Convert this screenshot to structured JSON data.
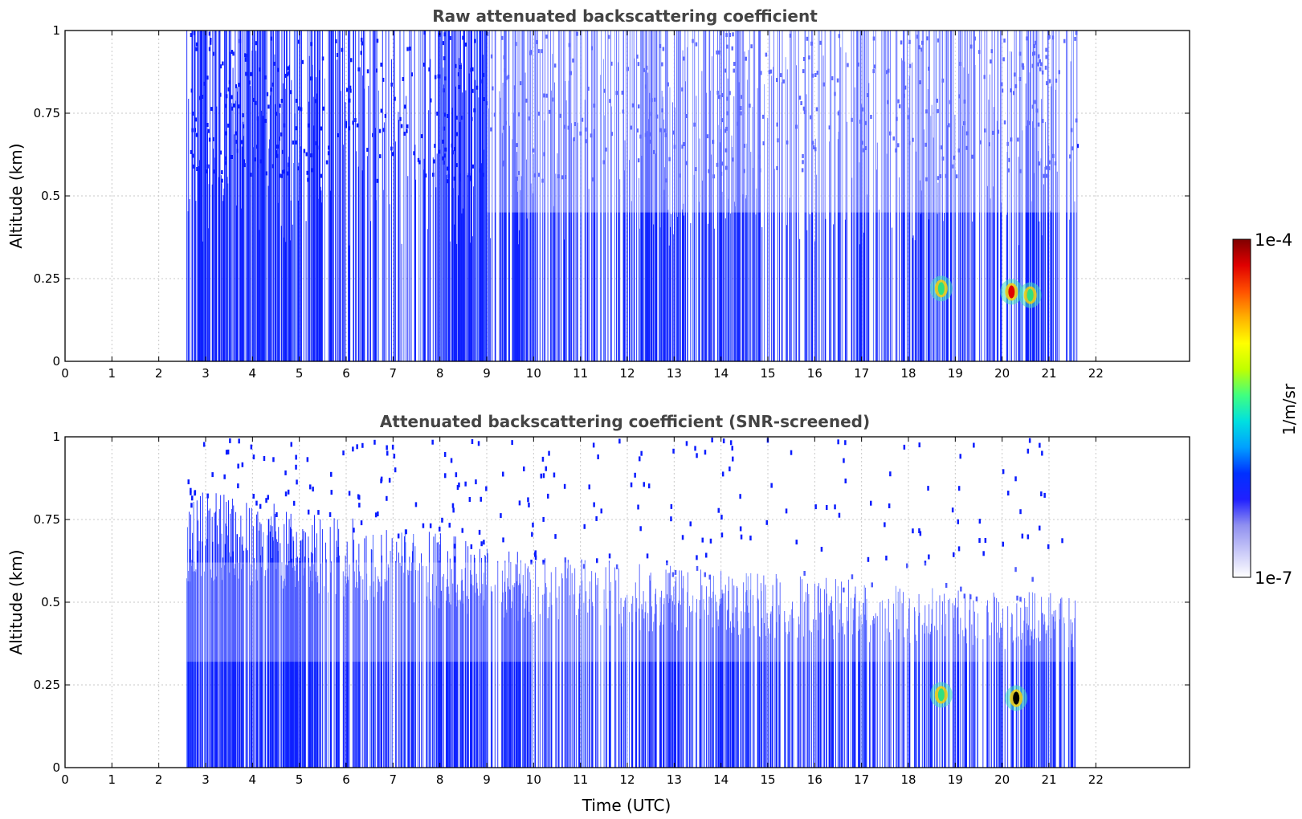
{
  "chart_data": [
    {
      "type": "heatmap",
      "title": "Raw attenuated backscattering coefficient",
      "xlabel": "",
      "ylabel": "Altitude (km)",
      "xlim": [
        0,
        24
      ],
      "ylim": [
        0,
        1
      ],
      "x_ticks": [
        "0",
        "1",
        "2",
        "3",
        "4",
        "5",
        "6",
        "7",
        "8",
        "9",
        "10",
        "11",
        "12",
        "13",
        "14",
        "15",
        "16",
        "17",
        "18",
        "19",
        "20",
        "21",
        "22"
      ],
      "y_ticks": [
        "0",
        "0.25",
        "0.5",
        "0.75",
        "1"
      ],
      "grid": true,
      "data_extent_hours": [
        2.6,
        21.6
      ],
      "dense_periods_hours": [
        [
          2.6,
          5.5
        ],
        [
          7.9,
          9.0
        ],
        [
          9.3,
          10.0
        ],
        [
          12.3,
          13.2
        ],
        [
          13.9,
          14.6
        ],
        [
          20.5,
          21.0
        ]
      ],
      "high_value_features": [
        {
          "time_hours": 20.2,
          "altitude_km": 0.21,
          "level": "1e-4"
        },
        {
          "time_hours": 18.7,
          "altitude_km": 0.22,
          "level": "1e-5"
        },
        {
          "time_hours": 20.6,
          "altitude_km": 0.2,
          "level": "1e-5"
        }
      ]
    },
    {
      "type": "heatmap",
      "title": "Attenuated backscattering coefficient (SNR-screened)",
      "xlabel": "Time (UTC)",
      "ylabel": "Altitude (km)",
      "xlim": [
        0,
        24
      ],
      "ylim": [
        0,
        1
      ],
      "x_ticks": [
        "0",
        "1",
        "2",
        "3",
        "4",
        "5",
        "6",
        "7",
        "8",
        "9",
        "10",
        "11",
        "12",
        "13",
        "14",
        "15",
        "16",
        "17",
        "18",
        "19",
        "20",
        "21",
        "22"
      ],
      "y_ticks": [
        "0",
        "0.25",
        "0.5",
        "0.75",
        "1"
      ],
      "grid": true,
      "data_extent_hours": [
        2.6,
        21.6
      ],
      "screened_top_km": [
        {
          "time_hours": 3,
          "altitude_km": 0.8
        },
        {
          "time_hours": 5,
          "altitude_km": 0.75
        },
        {
          "time_hours": 8,
          "altitude_km": 0.68
        },
        {
          "time_hours": 10,
          "altitude_km": 0.62
        },
        {
          "time_hours": 13,
          "altitude_km": 0.58
        },
        {
          "time_hours": 16,
          "altitude_km": 0.55
        },
        {
          "time_hours": 19,
          "altitude_km": 0.52
        },
        {
          "time_hours": 21.6,
          "altitude_km": 0.5
        }
      ],
      "high_value_features": [
        {
          "time_hours": 20.3,
          "altitude_km": 0.21,
          "level": "saturated"
        },
        {
          "time_hours": 18.7,
          "altitude_km": 0.22,
          "level": "1e-5"
        }
      ]
    }
  ],
  "colorbar": {
    "label": "1/m/sr",
    "max_label": "1e-4",
    "min_label": "1e-7",
    "scale": "log",
    "colors": [
      "#ffffff",
      "#c8c8f8",
      "#9090f0",
      "#2020ff",
      "#0030ff",
      "#00a0ff",
      "#00e0e0",
      "#40ff80",
      "#c0ff00",
      "#ffff00",
      "#ffb000",
      "#ff5000",
      "#e00000",
      "#800000"
    ]
  }
}
